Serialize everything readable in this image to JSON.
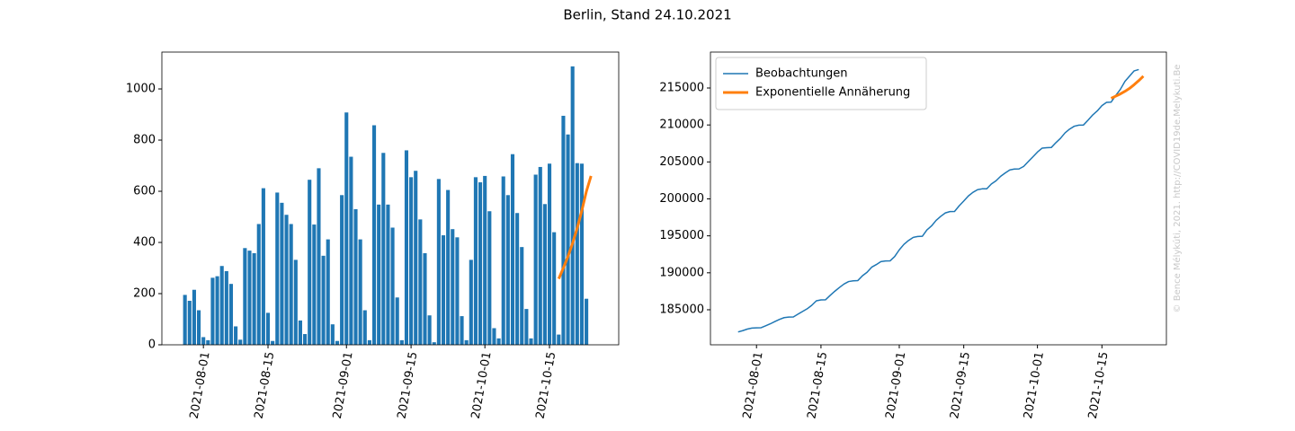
{
  "title": "Berlin, Stand 24.10.2021",
  "watermark": "© Bence Mélykúti, 2021. http://COVID19de.Melykuti.Be",
  "chart_data": [
    {
      "type": "bar",
      "xlim": [
        "2021-07-23",
        "2021-10-30"
      ],
      "xticks": [
        "2021-08-01",
        "2021-08-15",
        "2021-09-01",
        "2021-09-15",
        "2021-10-01",
        "2021-10-15"
      ],
      "ylim": [
        0,
        1144
      ],
      "yticks": [
        0,
        200,
        400,
        600,
        800,
        1000
      ],
      "series": [
        {
          "type": "bar",
          "color": "#1f77b4",
          "x": [
            "2021-07-28",
            "2021-07-29",
            "2021-07-30",
            "2021-07-31",
            "2021-08-01",
            "2021-08-02",
            "2021-08-03",
            "2021-08-04",
            "2021-08-05",
            "2021-08-06",
            "2021-08-07",
            "2021-08-08",
            "2021-08-09",
            "2021-08-10",
            "2021-08-11",
            "2021-08-12",
            "2021-08-13",
            "2021-08-14",
            "2021-08-15",
            "2021-08-16",
            "2021-08-17",
            "2021-08-18",
            "2021-08-19",
            "2021-08-20",
            "2021-08-21",
            "2021-08-22",
            "2021-08-23",
            "2021-08-24",
            "2021-08-25",
            "2021-08-26",
            "2021-08-27",
            "2021-08-28",
            "2021-08-29",
            "2021-08-30",
            "2021-08-31",
            "2021-09-01",
            "2021-09-02",
            "2021-09-03",
            "2021-09-04",
            "2021-09-05",
            "2021-09-06",
            "2021-09-07",
            "2021-09-08",
            "2021-09-09",
            "2021-09-10",
            "2021-09-11",
            "2021-09-12",
            "2021-09-13",
            "2021-09-14",
            "2021-09-15",
            "2021-09-16",
            "2021-09-17",
            "2021-09-18",
            "2021-09-19",
            "2021-09-20",
            "2021-09-21",
            "2021-09-22",
            "2021-09-23",
            "2021-09-24",
            "2021-09-25",
            "2021-09-26",
            "2021-09-27",
            "2021-09-28",
            "2021-09-29",
            "2021-09-30",
            "2021-10-01",
            "2021-10-02",
            "2021-10-03",
            "2021-10-04",
            "2021-10-05",
            "2021-10-06",
            "2021-10-07",
            "2021-10-08",
            "2021-10-09",
            "2021-10-10",
            "2021-10-11",
            "2021-10-12",
            "2021-10-13",
            "2021-10-14",
            "2021-10-15",
            "2021-10-16",
            "2021-10-17",
            "2021-10-18",
            "2021-10-19",
            "2021-10-20",
            "2021-10-21",
            "2021-10-22",
            "2021-10-23"
          ],
          "values": [
            195,
            172,
            215,
            135,
            30,
            18,
            262,
            268,
            308,
            288,
            238,
            72,
            20,
            378,
            368,
            358,
            472,
            612,
            125,
            15,
            595,
            555,
            508,
            472,
            332,
            95,
            42,
            645,
            470,
            690,
            348,
            412,
            80,
            15,
            585,
            908,
            735,
            530,
            412,
            135,
            18,
            858,
            548,
            750,
            548,
            458,
            185,
            18,
            760,
            655,
            680,
            490,
            358,
            115,
            10,
            648,
            428,
            605,
            452,
            420,
            112,
            18,
            332,
            655,
            635,
            660,
            522,
            65,
            25,
            658,
            585,
            745,
            515,
            382,
            140,
            25,
            665,
            695,
            550,
            708,
            440,
            40,
            895,
            822,
            1088,
            710,
            708,
            180
          ]
        },
        {
          "type": "line",
          "color": "#ff7f0e",
          "width": 3,
          "x": [
            "2021-10-17",
            "2021-10-18",
            "2021-10-19",
            "2021-10-20",
            "2021-10-21",
            "2021-10-22",
            "2021-10-23",
            "2021-10-24"
          ],
          "values": [
            258,
            300,
            345,
            397,
            456,
            524,
            600,
            660
          ]
        }
      ]
    },
    {
      "type": "line",
      "xlim": [
        "2021-07-22",
        "2021-10-29"
      ],
      "xticks": [
        "2021-08-01",
        "2021-08-15",
        "2021-09-01",
        "2021-09-15",
        "2021-10-01",
        "2021-10-15"
      ],
      "ylim": [
        180260,
        219860
      ],
      "yticks": [
        185000,
        190000,
        195000,
        200000,
        205000,
        210000,
        215000
      ],
      "legend": "upper left",
      "series": [
        {
          "type": "line",
          "name": "Beobachtungen",
          "color": "#1f77b4",
          "width": 1.5,
          "x": [
            "2021-07-28",
            "2021-07-29",
            "2021-07-30",
            "2021-07-31",
            "2021-08-01",
            "2021-08-02",
            "2021-08-03",
            "2021-08-04",
            "2021-08-05",
            "2021-08-06",
            "2021-08-07",
            "2021-08-08",
            "2021-08-09",
            "2021-08-10",
            "2021-08-11",
            "2021-08-12",
            "2021-08-13",
            "2021-08-14",
            "2021-08-15",
            "2021-08-16",
            "2021-08-17",
            "2021-08-18",
            "2021-08-19",
            "2021-08-20",
            "2021-08-21",
            "2021-08-22",
            "2021-08-23",
            "2021-08-24",
            "2021-08-25",
            "2021-08-26",
            "2021-08-27",
            "2021-08-28",
            "2021-08-29",
            "2021-08-30",
            "2021-08-31",
            "2021-09-01",
            "2021-09-02",
            "2021-09-03",
            "2021-09-04",
            "2021-09-05",
            "2021-09-06",
            "2021-09-07",
            "2021-09-08",
            "2021-09-09",
            "2021-09-10",
            "2021-09-11",
            "2021-09-12",
            "2021-09-13",
            "2021-09-14",
            "2021-09-15",
            "2021-09-16",
            "2021-09-17",
            "2021-09-18",
            "2021-09-19",
            "2021-09-20",
            "2021-09-21",
            "2021-09-22",
            "2021-09-23",
            "2021-09-24",
            "2021-09-25",
            "2021-09-26",
            "2021-09-27",
            "2021-09-28",
            "2021-09-29",
            "2021-09-30",
            "2021-10-01",
            "2021-10-02",
            "2021-10-03",
            "2021-10-04",
            "2021-10-05",
            "2021-10-06",
            "2021-10-07",
            "2021-10-08",
            "2021-10-09",
            "2021-10-10",
            "2021-10-11",
            "2021-10-12",
            "2021-10-13",
            "2021-10-14",
            "2021-10-15",
            "2021-10-16",
            "2021-10-17",
            "2021-10-18",
            "2021-10-19",
            "2021-10-20",
            "2021-10-21",
            "2021-10-22",
            "2021-10-23"
          ],
          "values": [
            182000,
            182172,
            182387,
            182522,
            182552,
            182570,
            182832,
            183100,
            183408,
            183696,
            183934,
            184006,
            184026,
            184404,
            184772,
            185130,
            185602,
            186214,
            186339,
            186354,
            186949,
            187504,
            188012,
            188484,
            188816,
            188911,
            188953,
            189598,
            190068,
            190758,
            191106,
            191518,
            191598,
            191613,
            192198,
            193106,
            193841,
            194371,
            194783,
            194918,
            194936,
            195794,
            196342,
            197092,
            197640,
            198098,
            198283,
            198301,
            199061,
            199716,
            200396,
            200886,
            201244,
            201359,
            201369,
            202017,
            202445,
            203050,
            203502,
            203922,
            204034,
            204052,
            204384,
            205039,
            205674,
            206334,
            206856,
            206921,
            206946,
            207604,
            208189,
            208934,
            209449,
            209831,
            209971,
            209996,
            210661,
            211356,
            211906,
            212614,
            213054,
            213094,
            213989,
            214811,
            215899,
            216609,
            217317,
            217497
          ]
        },
        {
          "type": "line",
          "name": "Exponentielle Annäherung",
          "color": "#ff7f0e",
          "width": 3,
          "x": [
            "2021-10-17",
            "2021-10-18",
            "2021-10-19",
            "2021-10-20",
            "2021-10-21",
            "2021-10-22",
            "2021-10-23",
            "2021-10-24"
          ],
          "values": [
            213600,
            213900,
            214200,
            214550,
            214950,
            215450,
            216000,
            216600
          ]
        }
      ]
    }
  ]
}
